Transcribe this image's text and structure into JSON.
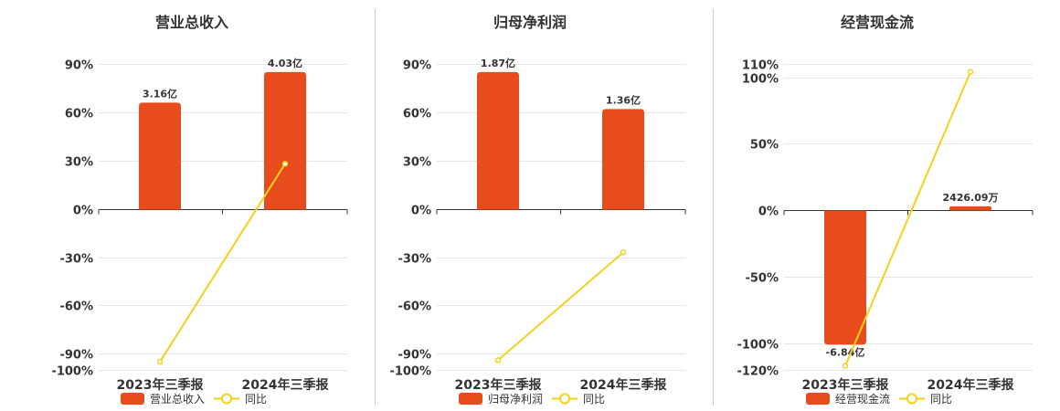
{
  "colors": {
    "bar": "#e84c1d",
    "line": "#f2d21b",
    "grid": "#e6e6e6",
    "text": "#333333"
  },
  "legend_line_label": "同比",
  "chart_data": [
    {
      "type": "bar",
      "title": "营业总收入",
      "categories": [
        "2023年三季报",
        "2024年三季报"
      ],
      "series": [
        {
          "name": "营业总收入",
          "type": "bar",
          "values": [
            66,
            85
          ],
          "labels": [
            "3.16亿",
            "4.03亿"
          ]
        },
        {
          "name": "同比",
          "type": "line",
          "values": [
            -95,
            28
          ]
        }
      ],
      "yticks": [
        90,
        60,
        30,
        0,
        -30,
        -60,
        -90,
        -100
      ],
      "ytick_labels": [
        "90%",
        "60%",
        "30%",
        "0%",
        "-30%",
        "-60%",
        "-90%",
        "-100%"
      ],
      "ylim": [
        -100,
        90
      ],
      "grid": true,
      "legend": "bottom"
    },
    {
      "type": "bar",
      "title": "归母净利润",
      "categories": [
        "2023年三季报",
        "2024年三季报"
      ],
      "series": [
        {
          "name": "归母净利润",
          "type": "bar",
          "values": [
            85,
            62
          ],
          "labels": [
            "1.87亿",
            "1.36亿"
          ]
        },
        {
          "name": "同比",
          "type": "line",
          "values": [
            -94,
            -27
          ]
        }
      ],
      "yticks": [
        90,
        60,
        30,
        0,
        -30,
        -60,
        -90,
        -100
      ],
      "ytick_labels": [
        "90%",
        "60%",
        "30%",
        "0%",
        "-30%",
        "-60%",
        "-90%",
        "-100%"
      ],
      "ylim": [
        -100,
        90
      ],
      "grid": true,
      "legend": "bottom"
    },
    {
      "type": "bar",
      "title": "经营现金流",
      "categories": [
        "2023年三季报",
        "2024年三季报"
      ],
      "series": [
        {
          "name": "经营现金流",
          "type": "bar",
          "values": [
            -101,
            3
          ],
          "labels": [
            "-6.84亿",
            "2426.09万"
          ]
        },
        {
          "name": "同比",
          "type": "line",
          "values": [
            -117,
            104
          ]
        }
      ],
      "yticks": [
        110,
        100,
        50,
        0,
        -50,
        -100,
        -120
      ],
      "ytick_labels": [
        "110%",
        "100%",
        "50%",
        "0%",
        "-50%",
        "-100%",
        "-120%"
      ],
      "ylim": [
        -120,
        110
      ],
      "grid": true,
      "legend": "bottom"
    }
  ]
}
